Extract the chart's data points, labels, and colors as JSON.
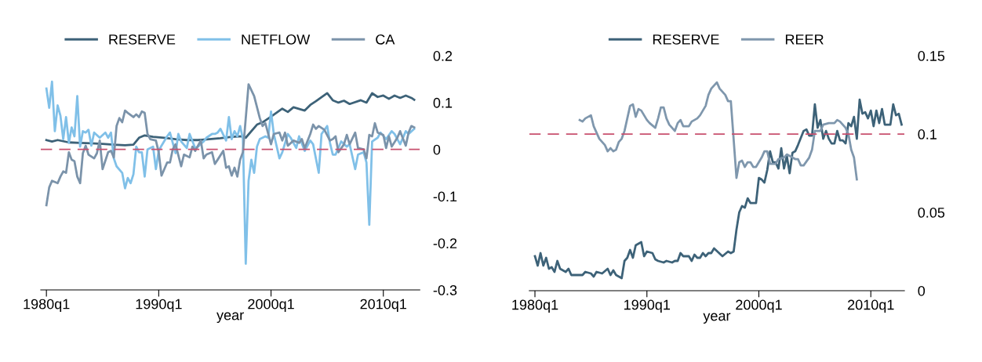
{
  "chart_data": [
    {
      "type": "line",
      "xlabel": "year",
      "legend": "top",
      "grid": false,
      "xlim": [
        "1979-07",
        "2013-04"
      ],
      "xticks": [
        {
          "value": "1980-01",
          "label": "1980q1"
        },
        {
          "value": "1990-01",
          "label": "1990q1"
        },
        {
          "value": "2000-01",
          "label": "2000q1"
        },
        {
          "value": "2010-01",
          "label": "2010q1"
        }
      ],
      "ylim": [
        -0.3,
        0.2
      ],
      "yticks": [
        {
          "value": -0.3,
          "label": "-0.3"
        },
        {
          "value": -0.2,
          "label": "-0.2"
        },
        {
          "value": -0.1,
          "label": "-0.1"
        },
        0,
        0.1,
        0.2
      ],
      "ref_lines": [
        {
          "axis": "y",
          "value": 0,
          "color": "#c8506e",
          "line_style": "dashed"
        }
      ],
      "series": [
        {
          "name": "RESERVE",
          "color": "#3d6278",
          "x": [
            "1980-01",
            "1980-07",
            "1981-01",
            "1982-01",
            "1983-01",
            "1984-01",
            "1985-01",
            "1986-01",
            "1987-01",
            "1987-10",
            "1988-04",
            "1988-10",
            "1989-07",
            "1990-07",
            "1991-07",
            "1992-07",
            "1993-07",
            "1994-07",
            "1995-07",
            "1996-07",
            "1997-07",
            "1997-10",
            "1998-10",
            "1999-04",
            "2000-01",
            "2001-01",
            "2001-07",
            "2002-01",
            "2003-01",
            "2003-07",
            "2004-01",
            "2005-01",
            "2005-07",
            "2006-01",
            "2006-07",
            "2007-01",
            "2008-01",
            "2008-07",
            "2009-01",
            "2009-07",
            "2010-01",
            "2010-07",
            "2011-01",
            "2011-07",
            "2012-01",
            "2012-07",
            "2012-10"
          ],
          "values": [
            0.02,
            0.017,
            0.02,
            0.015,
            0.014,
            0.013,
            0.012,
            0.01,
            0.009,
            0.01,
            0.025,
            0.03,
            0.027,
            0.025,
            0.022,
            0.02,
            0.02,
            0.022,
            0.024,
            0.027,
            0.028,
            0.025,
            0.053,
            0.058,
            0.07,
            0.087,
            0.08,
            0.09,
            0.083,
            0.095,
            0.103,
            0.12,
            0.105,
            0.1,
            0.104,
            0.097,
            0.105,
            0.1,
            0.12,
            0.112,
            0.115,
            0.108,
            0.115,
            0.11,
            0.115,
            0.11,
            0.106
          ]
        },
        {
          "name": "NETFLOW",
          "color": "#80c0e8",
          "x": [
            "1980-01",
            "1980-04",
            "1980-07",
            "1980-10",
            "1981-01",
            "1981-04",
            "1981-07",
            "1981-10",
            "1982-01",
            "1982-04",
            "1982-07",
            "1982-10",
            "1983-01",
            "1983-04",
            "1983-07",
            "1983-10",
            "1984-01",
            "1984-04",
            "1984-10",
            "1985-04",
            "1985-07",
            "1985-10",
            "1986-01",
            "1986-04",
            "1986-10",
            "1987-01",
            "1987-04",
            "1987-07",
            "1987-10",
            "1988-01",
            "1988-04",
            "1988-07",
            "1988-10",
            "1989-01",
            "1989-07",
            "1989-10",
            "1990-01",
            "1990-04",
            "1990-10",
            "1991-01",
            "1991-07",
            "1991-10",
            "1992-01",
            "1992-07",
            "1992-10",
            "1993-04",
            "1993-07",
            "1994-01",
            "1994-04",
            "1994-10",
            "1995-01",
            "1995-04",
            "1995-07",
            "1996-01",
            "1996-04",
            "1996-07",
            "1996-10",
            "1997-01",
            "1997-04",
            "1997-07",
            "1997-10",
            "1998-01",
            "1998-04",
            "1998-07",
            "1998-10",
            "1999-01",
            "1999-07",
            "1999-10",
            "2000-01",
            "2000-04",
            "2000-10",
            "2001-01",
            "2001-07",
            "2001-10",
            "2002-04",
            "2002-07",
            "2003-01",
            "2003-07",
            "2003-10",
            "2004-04",
            "2004-07",
            "2005-01",
            "2005-04",
            "2005-07",
            "2005-10",
            "2006-04",
            "2006-10",
            "2007-01",
            "2007-07",
            "2007-10",
            "2008-04",
            "2008-07",
            "2008-10",
            "2009-01",
            "2009-07",
            "2009-10",
            "2010-04",
            "2010-10",
            "2011-01",
            "2011-07",
            "2012-01",
            "2012-04",
            "2012-10"
          ],
          "values": [
            0.13,
            0.089,
            0.145,
            0.039,
            0.094,
            0.072,
            0.022,
            0.069,
            0.014,
            0.047,
            0.028,
            0.114,
            0.006,
            0.039,
            0.036,
            0.042,
            0.008,
            0.036,
            0.025,
            0.036,
            0.025,
            0.036,
            -0.019,
            -0.036,
            -0.05,
            -0.083,
            -0.061,
            -0.072,
            -0.053,
            0.006,
            -0.006,
            -0.006,
            -0.058,
            0.0,
            0.006,
            -0.042,
            -0.003,
            0.008,
            0.028,
            0.036,
            -0.008,
            0.033,
            0.017,
            0.003,
            0.033,
            0.003,
            0.006,
            0.017,
            0.025,
            0.033,
            0.033,
            0.036,
            0.044,
            0.019,
            0.069,
            0.022,
            0.039,
            0.028,
            0.05,
            0.022,
            -0.244,
            -0.067,
            -0.022,
            -0.05,
            0.006,
            0.022,
            0.028,
            0.025,
            0.081,
            0.033,
            -0.019,
            -0.006,
            0.033,
            0.025,
            0.003,
            0.028,
            -0.003,
            0.019,
            0.011,
            -0.05,
            0.033,
            0.05,
            0.014,
            -0.011,
            -0.011,
            0.017,
            0.006,
            0.011,
            -0.042,
            -0.011,
            -0.006,
            -0.028,
            -0.161,
            0.017,
            0.025,
            0.036,
            0.022,
            0.039,
            0.033,
            0.011,
            0.039,
            0.033,
            0.044
          ]
        },
        {
          "name": "CA",
          "color": "#7b93aa",
          "x": [
            "1980-01",
            "1980-04",
            "1980-07",
            "1981-01",
            "1981-04",
            "1981-07",
            "1981-10",
            "1982-01",
            "1982-04",
            "1982-07",
            "1982-10",
            "1983-01",
            "1983-04",
            "1983-07",
            "1983-10",
            "1984-04",
            "1984-07",
            "1984-10",
            "1985-01",
            "1985-07",
            "1985-10",
            "1986-01",
            "1986-04",
            "1986-07",
            "1986-10",
            "1987-01",
            "1987-04",
            "1987-10",
            "1988-01",
            "1988-04",
            "1988-07",
            "1988-10",
            "1989-01",
            "1989-04",
            "1989-10",
            "1990-01",
            "1990-04",
            "1990-10",
            "1991-01",
            "1991-04",
            "1991-07",
            "1992-01",
            "1992-04",
            "1992-10",
            "1993-01",
            "1993-04",
            "1993-10",
            "1994-01",
            "1994-04",
            "1994-10",
            "1995-01",
            "1995-04",
            "1995-10",
            "1996-01",
            "1996-04",
            "1996-07",
            "1996-10",
            "1997-01",
            "1997-04",
            "1997-07",
            "1998-01",
            "1998-07",
            "1999-01",
            "1999-04",
            "1999-07",
            "2000-01",
            "2000-04",
            "2000-10",
            "2001-01",
            "2001-04",
            "2001-07",
            "2002-01",
            "2002-07",
            "2002-10",
            "2003-01",
            "2003-07",
            "2003-10",
            "2004-01",
            "2004-04",
            "2004-10",
            "2005-04",
            "2005-07",
            "2005-10",
            "2006-01",
            "2006-07",
            "2006-10",
            "2007-01",
            "2007-07",
            "2007-10",
            "2008-04",
            "2008-07",
            "2008-10",
            "2009-01",
            "2009-04",
            "2009-07",
            "2010-01",
            "2010-04",
            "2010-07",
            "2010-10",
            "2011-04",
            "2011-07",
            "2012-01",
            "2012-04",
            "2012-07",
            "2012-10"
          ],
          "values": [
            -0.119,
            -0.081,
            -0.067,
            -0.072,
            -0.058,
            -0.047,
            -0.05,
            -0.006,
            -0.022,
            -0.025,
            -0.058,
            -0.072,
            -0.008,
            0.008,
            -0.011,
            -0.019,
            -0.008,
            0.019,
            -0.042,
            -0.006,
            -0.003,
            -0.017,
            0.05,
            0.067,
            0.058,
            0.083,
            0.078,
            0.069,
            0.075,
            0.069,
            0.081,
            0.078,
            0.033,
            0.022,
            0.019,
            -0.006,
            -0.056,
            -0.028,
            -0.028,
            0.0,
            0.011,
            -0.036,
            -0.011,
            -0.017,
            0.006,
            -0.003,
            0.019,
            -0.019,
            -0.011,
            -0.006,
            -0.031,
            -0.022,
            -0.003,
            -0.039,
            -0.036,
            -0.056,
            -0.039,
            -0.058,
            -0.022,
            -0.006,
            0.139,
            0.114,
            0.067,
            0.05,
            0.056,
            0.011,
            0.033,
            0.036,
            0.019,
            0.036,
            0.008,
            0.019,
            0.014,
            0.022,
            0.003,
            0.033,
            0.053,
            0.044,
            0.05,
            0.042,
            0.019,
            0.022,
            0.028,
            -0.006,
            0.011,
            0.031,
            0.011,
            0.036,
            0.003,
            0.0,
            -0.019,
            0.031,
            0.028,
            0.056,
            0.036,
            0.031,
            0.003,
            0.028,
            0.006,
            0.025,
            0.039,
            0.008,
            0.036,
            0.05,
            0.047
          ]
        }
      ]
    },
    {
      "type": "line",
      "xlabel": "year",
      "legend": "top",
      "grid": false,
      "xlim": [
        "1979-07",
        "2013-01"
      ],
      "xticks": [
        {
          "value": "1980-01",
          "label": "1980q1"
        },
        {
          "value": "1990-01",
          "label": "1990q1"
        },
        {
          "value": "2000-01",
          "label": "2000q1"
        },
        {
          "value": "2010-01",
          "label": "2010q1"
        }
      ],
      "ylim": [
        0,
        0.15
      ],
      "yticks": [
        0,
        0.05,
        0.1,
        0.15
      ],
      "ref_lines": [
        {
          "axis": "y",
          "value": 0.1,
          "color": "#c8506e",
          "line_style": "dashed"
        }
      ],
      "series": [
        {
          "name": "RESERVE",
          "color": "#3d6278",
          "x": [
            "1980-01",
            "1980-04",
            "1980-07",
            "1980-10",
            "1981-01",
            "1981-04",
            "1981-07",
            "1981-10",
            "1982-01",
            "1982-04",
            "1982-10",
            "1983-01",
            "1983-04",
            "1983-10",
            "1984-04",
            "1984-07",
            "1985-01",
            "1985-04",
            "1985-07",
            "1986-01",
            "1986-07",
            "1986-10",
            "1987-01",
            "1987-04",
            "1987-10",
            "1988-01",
            "1988-04",
            "1988-07",
            "1988-10",
            "1989-01",
            "1989-07",
            "1989-10",
            "1990-01",
            "1990-07",
            "1990-10",
            "1991-01",
            "1991-07",
            "1991-10",
            "1992-04",
            "1992-07",
            "1992-10",
            "1993-01",
            "1993-04",
            "1993-10",
            "1994-01",
            "1994-04",
            "1994-07",
            "1994-10",
            "1995-01",
            "1995-04",
            "1995-07",
            "1995-10",
            "1996-01",
            "1996-10",
            "1997-04",
            "1997-07",
            "1997-10",
            "1998-01",
            "1998-04",
            "1998-07",
            "1998-10",
            "1999-01",
            "1999-04",
            "1999-07",
            "1999-10",
            "2000-01",
            "2000-04",
            "2000-07",
            "2000-10",
            "2001-01",
            "2001-04",
            "2001-07",
            "2001-10",
            "2002-01",
            "2002-04",
            "2002-07",
            "2002-10",
            "2003-01",
            "2003-04",
            "2003-07",
            "2004-01",
            "2004-04",
            "2004-07",
            "2004-10",
            "2005-01",
            "2005-04",
            "2005-07",
            "2005-10",
            "2006-01",
            "2006-04",
            "2006-07",
            "2006-10",
            "2007-01",
            "2007-04",
            "2007-07",
            "2007-10",
            "2008-01",
            "2008-04",
            "2008-07",
            "2008-10",
            "2009-01",
            "2009-04",
            "2009-07",
            "2009-10",
            "2010-01",
            "2010-04",
            "2010-07",
            "2010-10",
            "2011-01",
            "2011-04",
            "2011-10",
            "2012-01",
            "2012-04",
            "2012-07",
            "2012-10"
          ],
          "values": [
            0.022,
            0.016,
            0.024,
            0.016,
            0.021,
            0.014,
            0.015,
            0.012,
            0.019,
            0.014,
            0.012,
            0.014,
            0.01,
            0.01,
            0.01,
            0.012,
            0.011,
            0.009,
            0.012,
            0.011,
            0.014,
            0.01,
            0.013,
            0.01,
            0.008,
            0.019,
            0.021,
            0.026,
            0.021,
            0.029,
            0.031,
            0.022,
            0.025,
            0.024,
            0.02,
            0.019,
            0.018,
            0.019,
            0.018,
            0.019,
            0.019,
            0.024,
            0.022,
            0.022,
            0.019,
            0.023,
            0.021,
            0.021,
            0.024,
            0.022,
            0.024,
            0.024,
            0.027,
            0.022,
            0.025,
            0.024,
            0.025,
            0.039,
            0.05,
            0.054,
            0.053,
            0.059,
            0.056,
            0.056,
            0.056,
            0.072,
            0.071,
            0.069,
            0.077,
            0.089,
            0.082,
            0.082,
            0.078,
            0.091,
            0.078,
            0.086,
            0.075,
            0.088,
            0.089,
            0.093,
            0.102,
            0.103,
            0.099,
            0.099,
            0.119,
            0.104,
            0.109,
            0.097,
            0.102,
            0.097,
            0.094,
            0.094,
            0.102,
            0.096,
            0.096,
            0.094,
            0.107,
            0.105,
            0.111,
            0.097,
            0.122,
            0.113,
            0.114,
            0.11,
            0.115,
            0.105,
            0.115,
            0.107,
            0.116,
            0.106,
            0.106,
            0.119,
            0.112,
            0.113,
            0.106
          ]
        },
        {
          "name": "REER",
          "color": "#7f97ad",
          "x": [
            "1984-01",
            "1984-04",
            "1984-07",
            "1985-01",
            "1985-04",
            "1985-10",
            "1986-04",
            "1986-07",
            "1986-10",
            "1987-01",
            "1987-04",
            "1987-07",
            "1987-10",
            "1988-01",
            "1988-04",
            "1988-07",
            "1988-10",
            "1989-01",
            "1989-04",
            "1989-07",
            "1990-01",
            "1990-04",
            "1990-10",
            "1991-01",
            "1991-04",
            "1991-07",
            "1991-10",
            "1992-01",
            "1992-07",
            "1992-10",
            "1993-01",
            "1993-04",
            "1993-10",
            "1994-01",
            "1994-07",
            "1994-10",
            "1995-04",
            "1995-07",
            "1995-10",
            "1996-04",
            "1996-07",
            "1997-01",
            "1997-04",
            "1997-07",
            "1998-01",
            "1998-04",
            "1998-07",
            "1998-10",
            "1999-01",
            "1999-04",
            "1999-07",
            "1999-10",
            "2000-04",
            "2000-07",
            "2000-10",
            "2001-01",
            "2001-07",
            "2001-10",
            "2002-04",
            "2002-07",
            "2003-01",
            "2003-04",
            "2003-07",
            "2003-10",
            "2004-01",
            "2004-07",
            "2004-10",
            "2005-01",
            "2005-07",
            "2005-10",
            "2006-04",
            "2006-10",
            "2007-01",
            "2007-04",
            "2007-10",
            "2008-01",
            "2008-04",
            "2008-07",
            "2008-10"
          ],
          "values": [
            0.109,
            0.108,
            0.11,
            0.112,
            0.105,
            0.097,
            0.093,
            0.089,
            0.091,
            0.089,
            0.09,
            0.095,
            0.097,
            0.102,
            0.11,
            0.118,
            0.119,
            0.111,
            0.116,
            0.115,
            0.109,
            0.107,
            0.104,
            0.11,
            0.117,
            0.117,
            0.11,
            0.106,
            0.102,
            0.107,
            0.109,
            0.105,
            0.105,
            0.108,
            0.11,
            0.112,
            0.118,
            0.125,
            0.129,
            0.133,
            0.129,
            0.125,
            0.121,
            0.121,
            0.072,
            0.082,
            0.083,
            0.079,
            0.082,
            0.082,
            0.079,
            0.079,
            0.085,
            0.089,
            0.089,
            0.081,
            0.081,
            0.084,
            0.085,
            0.087,
            0.085,
            0.084,
            0.084,
            0.08,
            0.08,
            0.085,
            0.09,
            0.102,
            0.102,
            0.106,
            0.107,
            0.107,
            0.109,
            0.108,
            0.104,
            0.1,
            0.09,
            0.085,
            0.071
          ]
        }
      ]
    }
  ]
}
